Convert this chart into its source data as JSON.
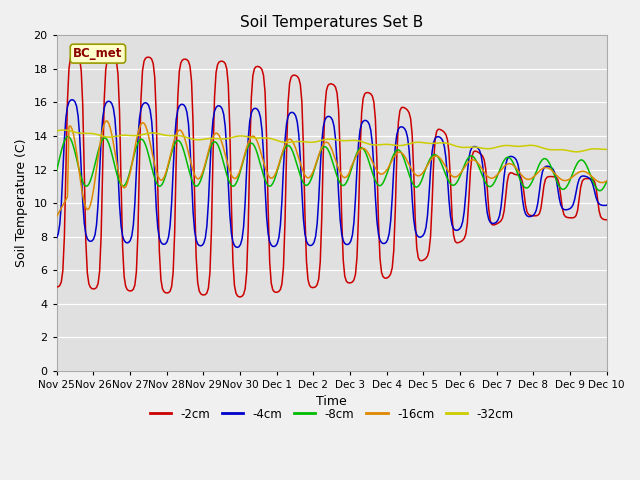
{
  "title": "Soil Temperatures Set B",
  "xlabel": "Time",
  "ylabel": "Soil Temperature (C)",
  "ylim": [
    0,
    20
  ],
  "yticks": [
    0,
    2,
    4,
    6,
    8,
    10,
    12,
    14,
    16,
    18,
    20
  ],
  "x_labels": [
    "Nov 25",
    "Nov 26",
    "Nov 27",
    "Nov 28",
    "Nov 29",
    "Nov 30",
    "Dec 1",
    "Dec 2",
    "Dec 3",
    "Dec 4",
    "Dec 5",
    "Dec 6",
    "Dec 7",
    "Dec 8",
    "Dec 9",
    "Dec 10"
  ],
  "annotation": "BC_met",
  "colors": {
    "-2cm": "#cc0000",
    "-4cm": "#0000cc",
    "-8cm": "#00bb00",
    "-16cm": "#dd8800",
    "-32cm": "#cccc00"
  },
  "legend_labels": [
    "-2cm",
    "-4cm",
    "-8cm",
    "-16cm",
    "-32cm"
  ],
  "fig_bg": "#f0f0f0",
  "ax_bg": "#e0e0e0"
}
